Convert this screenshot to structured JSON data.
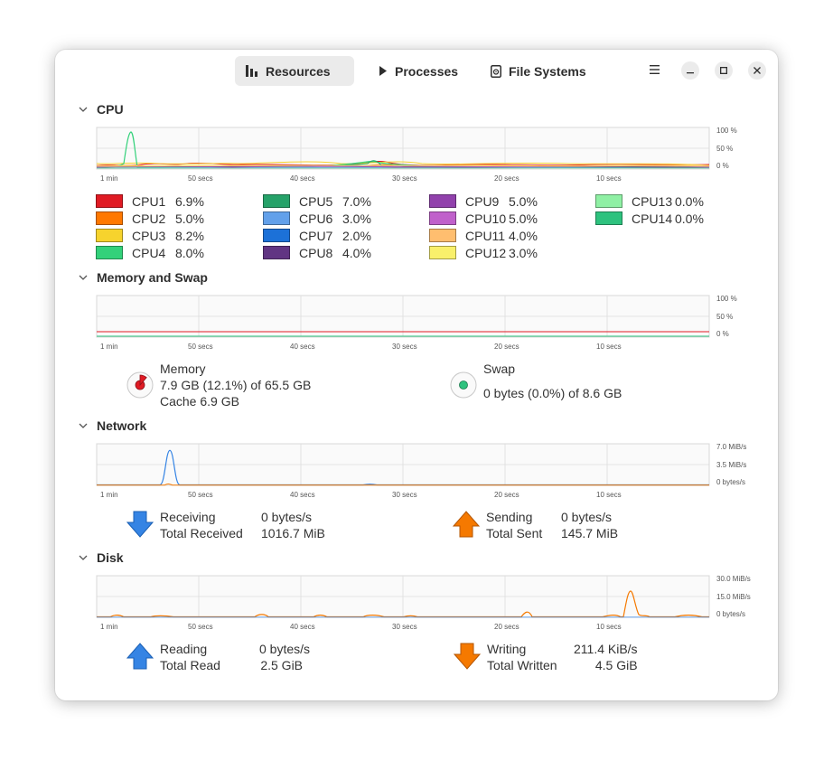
{
  "header": {
    "tabs": [
      {
        "label": "Resources",
        "icon": "bar-chart-icon",
        "active": true
      },
      {
        "label": "Processes",
        "icon": "play-icon",
        "active": false
      },
      {
        "label": "File Systems",
        "icon": "disk-icon",
        "active": false
      }
    ],
    "menu_icon": "hamburger-menu-icon",
    "window_controls": [
      "minimize-icon",
      "maximize-icon",
      "close-icon"
    ]
  },
  "x_ticks": [
    "1 min",
    "50 secs",
    "40 secs",
    "30 secs",
    "20 secs",
    "10 secs"
  ],
  "cpu": {
    "title": "CPU",
    "y_ticks": [
      "100 %",
      "50 %",
      "0 %"
    ],
    "cores": [
      {
        "name": "CPU1",
        "value": "6.9%",
        "color": "#e01b24"
      },
      {
        "name": "CPU2",
        "value": "5.0%",
        "color": "#ff7800"
      },
      {
        "name": "CPU3",
        "value": "8.2%",
        "color": "#f6d32d"
      },
      {
        "name": "CPU4",
        "value": "8.0%",
        "color": "#33d17a"
      },
      {
        "name": "CPU5",
        "value": "7.0%",
        "color": "#26a269"
      },
      {
        "name": "CPU6",
        "value": "3.0%",
        "color": "#62a0ea"
      },
      {
        "name": "CPU7",
        "value": "2.0%",
        "color": "#1c71d8"
      },
      {
        "name": "CPU8",
        "value": "4.0%",
        "color": "#613583"
      },
      {
        "name": "CPU9",
        "value": "5.0%",
        "color": "#9141ac"
      },
      {
        "name": "CPU10",
        "value": "5.0%",
        "color": "#c061cb"
      },
      {
        "name": "CPU11",
        "value": "4.0%",
        "color": "#ffbe6f"
      },
      {
        "name": "CPU12",
        "value": "3.0%",
        "color": "#f9f06b"
      },
      {
        "name": "CPU13",
        "value": "0.0%",
        "color": "#8ff0a4"
      },
      {
        "name": "CPU14",
        "value": "0.0%",
        "color": "#2ec27e"
      }
    ]
  },
  "memory": {
    "title": "Memory and Swap",
    "y_ticks": [
      "100 %",
      "50 %",
      "0 %"
    ],
    "memory_label": "Memory",
    "memory_usage": "7.9 GB (12.1%) of 65.5 GB",
    "memory_fraction": 0.121,
    "memory_color": "#e01b24",
    "cache": "Cache 6.9 GB",
    "swap_label": "Swap",
    "swap_usage": "0 bytes (0.0%) of 8.6 GB",
    "swap_fraction": 0.0,
    "swap_color": "#2ec27e"
  },
  "network": {
    "title": "Network",
    "y_ticks": [
      "7.0 MiB/s",
      "3.5 MiB/s",
      "0 bytes/s"
    ],
    "receiving_label": "Receiving",
    "receiving_value": "0 bytes/s",
    "total_received_label": "Total Received",
    "total_received_value": "1016.7 MiB",
    "sending_label": "Sending",
    "sending_value": "0 bytes/s",
    "total_sent_label": "Total Sent",
    "total_sent_value": "145.7 MiB",
    "receiving_color": "#3584e4",
    "sending_color": "#f57900"
  },
  "disk": {
    "title": "Disk",
    "y_ticks": [
      "30.0 MiB/s",
      "15.0 MiB/s",
      "0 bytes/s"
    ],
    "reading_label": "Reading",
    "reading_value": "0 bytes/s",
    "total_read_label": "Total Read",
    "total_read_value": "2.5 GiB",
    "writing_label": "Writing",
    "writing_value": "211.4 KiB/s",
    "total_written_label": "Total Written",
    "total_written_value": "4.5 GiB",
    "reading_color": "#3584e4",
    "writing_color": "#f57900"
  }
}
